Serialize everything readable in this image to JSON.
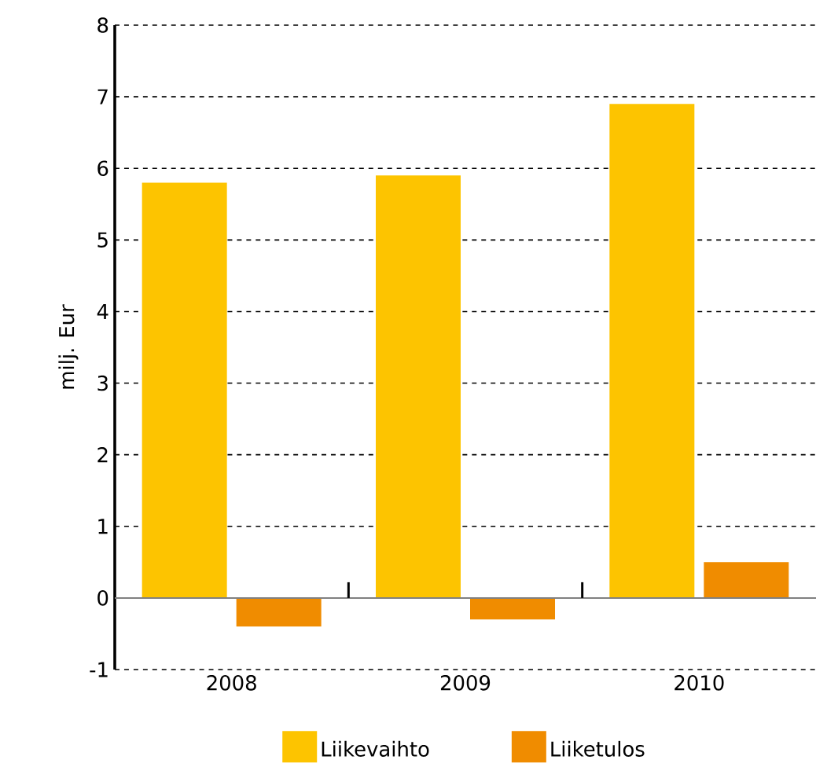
{
  "chart_data": {
    "type": "bar",
    "ylabel": "milj. Eur",
    "categories": [
      "2008",
      "2009",
      "2010"
    ],
    "series": [
      {
        "name": "Liikevaihto",
        "color": "#fdc400",
        "values": [
          5.8,
          5.9,
          6.9
        ]
      },
      {
        "name": "Liiketulos",
        "color": "#f08c00",
        "values": [
          -0.4,
          -0.3,
          0.5
        ]
      }
    ],
    "ylim": [
      -1,
      8
    ],
    "yticks": [
      -1,
      0,
      1,
      2,
      3,
      4,
      5,
      6,
      7,
      8
    ],
    "grid": "y",
    "legend": "bottom"
  }
}
